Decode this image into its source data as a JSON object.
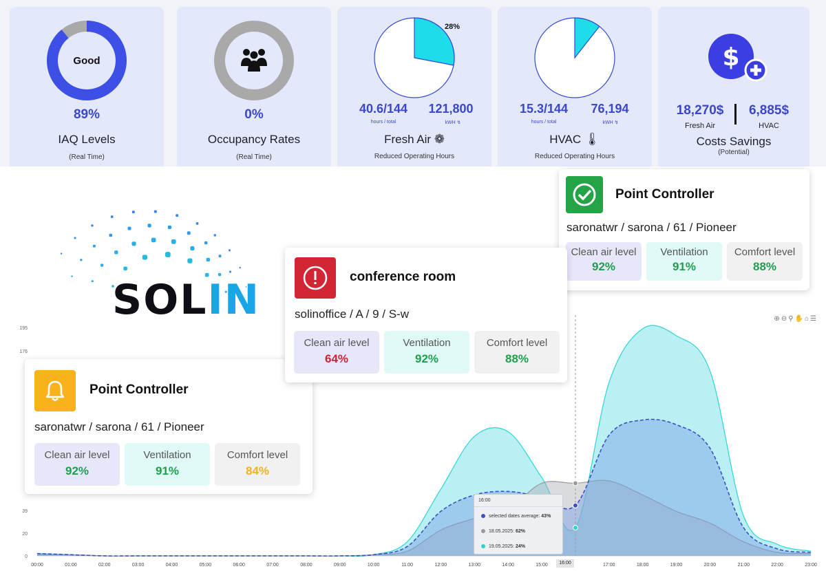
{
  "kpis": {
    "iaq": {
      "donut_label": "Good",
      "value": "89%",
      "title": "IAQ Levels",
      "subtitle": "(Real Time)",
      "fill_percent": 89
    },
    "occupancy": {
      "value": "0%",
      "title": "Occupancy Rates",
      "subtitle": "(Real Time)",
      "icon": "people-icon"
    },
    "fresh_air": {
      "pie_label": "28%",
      "pie_percent": 28,
      "hours": "40.6/144",
      "hours_caption": "hours / total",
      "kwh": "121,800",
      "kwh_caption": "kWH",
      "title": "Fresh Air",
      "subtitle": "Reduced Operating Hours",
      "icon": "fan-icon"
    },
    "hvac": {
      "pie_percent": 10.6,
      "hours": "15.3/144",
      "hours_caption": "hours / total",
      "kwh": "76,194",
      "kwh_caption": "kWH",
      "title": "HVAC",
      "subtitle": "Reduced Operating Hours",
      "icon": "thermometer-icon"
    },
    "savings": {
      "fresh_air_value": "18,270$",
      "fresh_air_caption": "Fresh Air",
      "hvac_value": "6,885$",
      "hvac_caption": "HVAC",
      "title": "Costs Savings",
      "subtitle": "(Potential)",
      "icon": "dollar-plus-icon"
    }
  },
  "logo": {
    "text_main": "SOL",
    "text_highlight": "IN"
  },
  "cards": [
    {
      "status": "ok",
      "icon": "check-circle-icon",
      "icon_color": "#22a447",
      "title": "Point Controller",
      "path": "saronatwr / sarona / 61 / Pioneer",
      "metrics": [
        {
          "label": "Clean air level",
          "value": "92%"
        },
        {
          "label": "Ventilation",
          "value": "91%"
        },
        {
          "label": "Comfort level",
          "value": "88%"
        }
      ]
    },
    {
      "status": "alert",
      "icon": "alert-circle-icon",
      "icon_color": "#d32635",
      "title": "conference room",
      "path": "solinoffice / A / 9 / S-w",
      "metrics": [
        {
          "label": "Clean air level",
          "value": "64%"
        },
        {
          "label": "Ventilation",
          "value": "92%"
        },
        {
          "label": "Comfort level",
          "value": "88%"
        }
      ]
    },
    {
      "status": "warning",
      "icon": "bell-icon",
      "icon_color": "#f7b21c",
      "title": "Point Controller",
      "path": "saronatwr / sarona / 61 / Pioneer",
      "metrics": [
        {
          "label": "Clean air level",
          "value": "92%"
        },
        {
          "label": "Ventilation",
          "value": "91%"
        },
        {
          "label": "Comfort level",
          "value": "84%"
        }
      ]
    }
  ],
  "tooltip": {
    "header": "16:00",
    "rows": [
      {
        "label": "selected dates average:",
        "value": "43%",
        "color": "#3d4fc2"
      },
      {
        "label": "18.05.2025:",
        "value": "62%",
        "color": "#9a9a9a"
      },
      {
        "label": "19.05.2025:",
        "value": "24%",
        "color": "#2fd6d0"
      }
    ]
  },
  "chart_data": {
    "type": "area",
    "x": [
      "00:00",
      "01:00",
      "02:00",
      "03:00",
      "04:00",
      "05:00",
      "06:00",
      "07:00",
      "08:00",
      "09:00",
      "10:00",
      "11:00",
      "12:00",
      "13:00",
      "14:00",
      "15:00",
      "16:00",
      "17:00",
      "18:00",
      "19:00",
      "20:00",
      "21:00",
      "22:00",
      "23:00"
    ],
    "y_ticks": [
      "0",
      "20",
      "39",
      "176",
      "195"
    ],
    "highlight_x": "16:00",
    "series": [
      {
        "name": "selected dates average",
        "style": "dashed",
        "color": "#3d4fc2",
        "values": [
          2,
          1,
          0,
          0,
          0,
          0,
          0,
          0,
          0,
          0,
          1,
          8,
          38,
          52,
          55,
          50,
          43,
          103,
          116,
          112,
          92,
          24,
          6,
          3
        ]
      },
      {
        "name": "18.05.2025",
        "color": "#9a9a9a",
        "values": [
          1,
          1,
          0,
          0,
          0,
          0,
          0,
          0,
          0,
          0,
          1,
          4,
          22,
          32,
          40,
          62,
          62,
          64,
          52,
          38,
          28,
          12,
          3,
          2
        ]
      },
      {
        "name": "19.05.2025",
        "color": "#2fd6d0",
        "values": [
          2,
          1,
          0,
          0,
          0,
          0,
          0,
          0,
          0,
          0,
          1,
          12,
          57,
          102,
          106,
          67,
          24,
          148,
          194,
          188,
          158,
          34,
          10,
          4
        ]
      }
    ]
  }
}
